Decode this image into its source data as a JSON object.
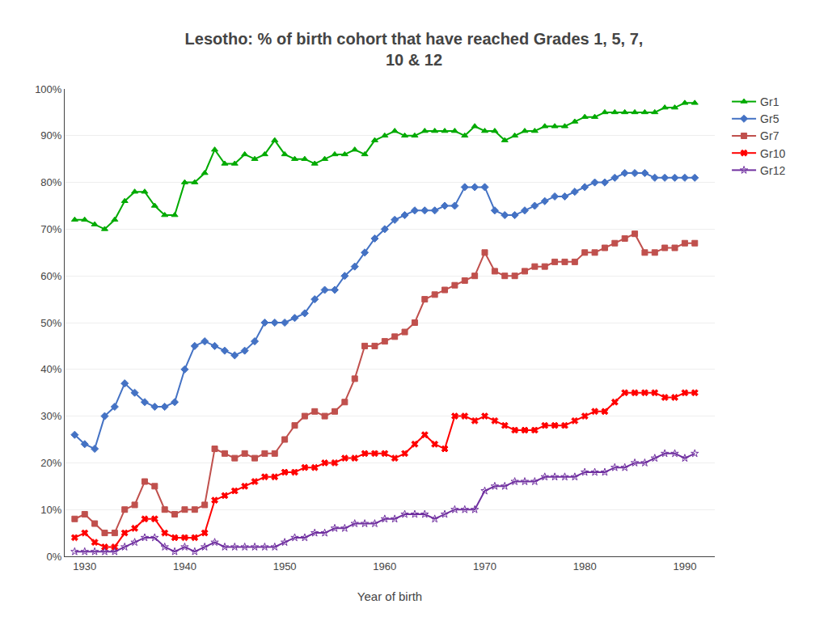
{
  "chart_data": {
    "type": "line",
    "title": "Lesotho: % of birth cohort that have reached Grades 1, 5, 7,\n10 & 12",
    "xlabel": "Year of birth",
    "xlim": [
      1928,
      1993
    ],
    "xticks": [
      1930,
      1940,
      1950,
      1960,
      1970,
      1980,
      1990
    ],
    "ylim": [
      0,
      1.0
    ],
    "yticks": [
      {
        "value": 0,
        "label": "0%"
      },
      {
        "value": 0.1,
        "label": "10%"
      },
      {
        "value": 0.2,
        "label": "20%"
      },
      {
        "value": 0.3,
        "label": "30%"
      },
      {
        "value": 0.4,
        "label": "40%"
      },
      {
        "value": 0.5,
        "label": "50%"
      },
      {
        "value": 0.6,
        "label": "60%"
      },
      {
        "value": 0.7,
        "label": "70%"
      },
      {
        "value": 0.8,
        "label": "80%"
      },
      {
        "value": 0.9,
        "label": "90%"
      },
      {
        "value": 1.0,
        "label": "100%"
      }
    ],
    "grid": "y",
    "legend": "right",
    "x": [
      1929,
      1930,
      1931,
      1932,
      1933,
      1934,
      1935,
      1936,
      1937,
      1938,
      1939,
      1940,
      1941,
      1942,
      1943,
      1944,
      1945,
      1946,
      1947,
      1948,
      1949,
      1950,
      1951,
      1952,
      1953,
      1954,
      1955,
      1956,
      1957,
      1958,
      1959,
      1960,
      1961,
      1962,
      1963,
      1964,
      1965,
      1966,
      1967,
      1968,
      1969,
      1970,
      1971,
      1972,
      1973,
      1974,
      1975,
      1976,
      1977,
      1978,
      1979,
      1980,
      1981,
      1982,
      1983,
      1984,
      1985,
      1986,
      1987,
      1988,
      1989,
      1990,
      1991
    ],
    "series": [
      {
        "name": "Gr1",
        "color": "#00aa00",
        "marker": "triangle-up",
        "values": [
          0.72,
          0.72,
          0.71,
          0.7,
          0.72,
          0.76,
          0.78,
          0.78,
          0.75,
          0.73,
          0.73,
          0.8,
          0.8,
          0.82,
          0.87,
          0.84,
          0.84,
          0.86,
          0.85,
          0.86,
          0.89,
          0.86,
          0.85,
          0.85,
          0.84,
          0.85,
          0.86,
          0.86,
          0.87,
          0.86,
          0.89,
          0.9,
          0.91,
          0.9,
          0.9,
          0.91,
          0.91,
          0.91,
          0.91,
          0.9,
          0.92,
          0.91,
          0.91,
          0.89,
          0.9,
          0.91,
          0.91,
          0.92,
          0.92,
          0.92,
          0.93,
          0.94,
          0.94,
          0.95,
          0.95,
          0.95,
          0.95,
          0.95,
          0.95,
          0.96,
          0.96,
          0.97,
          0.97
        ]
      },
      {
        "name": "Gr5",
        "color": "#4472c4",
        "marker": "diamond",
        "values": [
          0.26,
          0.24,
          0.23,
          0.3,
          0.32,
          0.37,
          0.35,
          0.33,
          0.32,
          0.32,
          0.33,
          0.4,
          0.45,
          0.46,
          0.45,
          0.44,
          0.43,
          0.44,
          0.46,
          0.5,
          0.5,
          0.5,
          0.51,
          0.52,
          0.55,
          0.57,
          0.57,
          0.6,
          0.62,
          0.65,
          0.68,
          0.7,
          0.72,
          0.73,
          0.74,
          0.74,
          0.74,
          0.75,
          0.75,
          0.79,
          0.79,
          0.79,
          0.74,
          0.73,
          0.73,
          0.74,
          0.75,
          0.76,
          0.77,
          0.77,
          0.78,
          0.79,
          0.8,
          0.8,
          0.81,
          0.82,
          0.82,
          0.82,
          0.81,
          0.81,
          0.81,
          0.81,
          0.81
        ]
      },
      {
        "name": "Gr7",
        "color": "#c0504d",
        "marker": "square",
        "values": [
          0.08,
          0.09,
          0.07,
          0.05,
          0.05,
          0.1,
          0.11,
          0.16,
          0.15,
          0.1,
          0.09,
          0.1,
          0.1,
          0.11,
          0.23,
          0.22,
          0.21,
          0.22,
          0.21,
          0.22,
          0.22,
          0.25,
          0.28,
          0.3,
          0.31,
          0.3,
          0.31,
          0.33,
          0.38,
          0.45,
          0.45,
          0.46,
          0.47,
          0.48,
          0.5,
          0.55,
          0.56,
          0.57,
          0.58,
          0.59,
          0.6,
          0.65,
          0.61,
          0.6,
          0.6,
          0.61,
          0.62,
          0.62,
          0.63,
          0.63,
          0.63,
          0.65,
          0.65,
          0.66,
          0.67,
          0.68,
          0.69,
          0.65,
          0.65,
          0.66,
          0.66,
          0.67,
          0.67
        ]
      },
      {
        "name": "Gr10",
        "color": "#ff0000",
        "marker": "x",
        "values": [
          0.04,
          0.05,
          0.03,
          0.02,
          0.02,
          0.05,
          0.06,
          0.08,
          0.08,
          0.05,
          0.04,
          0.04,
          0.04,
          0.05,
          0.12,
          0.13,
          0.14,
          0.15,
          0.16,
          0.17,
          0.17,
          0.18,
          0.18,
          0.19,
          0.19,
          0.2,
          0.2,
          0.21,
          0.21,
          0.22,
          0.22,
          0.22,
          0.21,
          0.22,
          0.24,
          0.26,
          0.24,
          0.23,
          0.3,
          0.3,
          0.29,
          0.3,
          0.29,
          0.28,
          0.27,
          0.27,
          0.27,
          0.28,
          0.28,
          0.28,
          0.29,
          0.3,
          0.31,
          0.31,
          0.33,
          0.35,
          0.35,
          0.35,
          0.35,
          0.34,
          0.34,
          0.35,
          0.35
        ]
      },
      {
        "name": "Gr12",
        "color": "#7030a0",
        "marker": "star",
        "values": [
          0.01,
          0.01,
          0.01,
          0.01,
          0.01,
          0.02,
          0.03,
          0.04,
          0.04,
          0.02,
          0.01,
          0.02,
          0.01,
          0.02,
          0.03,
          0.02,
          0.02,
          0.02,
          0.02,
          0.02,
          0.02,
          0.03,
          0.04,
          0.04,
          0.05,
          0.05,
          0.06,
          0.06,
          0.07,
          0.07,
          0.07,
          0.08,
          0.08,
          0.09,
          0.09,
          0.09,
          0.08,
          0.09,
          0.1,
          0.1,
          0.1,
          0.14,
          0.15,
          0.15,
          0.16,
          0.16,
          0.16,
          0.17,
          0.17,
          0.17,
          0.17,
          0.18,
          0.18,
          0.18,
          0.19,
          0.19,
          0.2,
          0.2,
          0.21,
          0.22,
          0.22,
          0.21,
          0.22
        ]
      }
    ]
  }
}
